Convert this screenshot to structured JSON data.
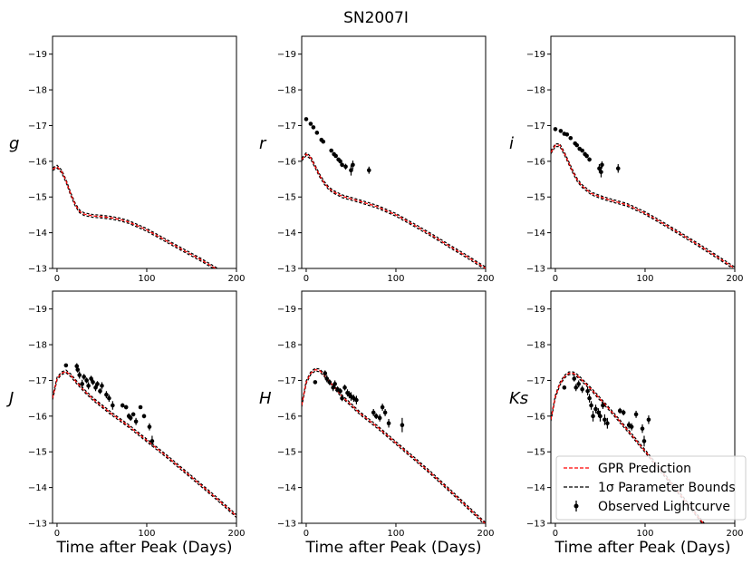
{
  "chart_data": {
    "title": "SN2007I",
    "xlabel": "Time after Peak (Days)",
    "xlim": [
      -5,
      200
    ],
    "ylim": [
      -13,
      -19.5
    ],
    "y_inverted": true,
    "x_ticks": [
      0,
      100,
      200
    ],
    "y_ticks": [
      -19,
      -18,
      -17,
      -16,
      -15,
      -14,
      -13
    ],
    "legend": {
      "placement": "lower-right of last panel",
      "entries": [
        {
          "label": "GPR Prediction",
          "style": "dashed",
          "color": "#ff0000"
        },
        {
          "label": "1σ Parameter Bounds",
          "style": "dashed",
          "color": "#000000"
        },
        {
          "label": "Observed Lightcurve",
          "style": "errorbar-marker",
          "color": "#000000"
        }
      ]
    },
    "panels": [
      {
        "band": "g",
        "type": "line",
        "model": {
          "x": [
            -5,
            0,
            5,
            10,
            15,
            20,
            25,
            30,
            40,
            50,
            60,
            70,
            80,
            100,
            120,
            140,
            160,
            180,
            200
          ],
          "y": [
            -15.78,
            -15.85,
            -15.72,
            -15.45,
            -15.1,
            -14.8,
            -14.6,
            -14.52,
            -14.47,
            -14.45,
            -14.42,
            -14.37,
            -14.3,
            -14.08,
            -13.8,
            -13.52,
            -13.25,
            -12.95,
            -12.65
          ]
        },
        "observations": []
      },
      {
        "band": "r",
        "type": "line",
        "model": {
          "x": [
            -5,
            0,
            5,
            10,
            15,
            20,
            25,
            30,
            40,
            50,
            60,
            70,
            80,
            100,
            120,
            140,
            160,
            180,
            200
          ],
          "y": [
            -16.05,
            -16.2,
            -16.1,
            -15.85,
            -15.6,
            -15.4,
            -15.25,
            -15.15,
            -15.02,
            -14.95,
            -14.88,
            -14.8,
            -14.72,
            -14.5,
            -14.22,
            -13.93,
            -13.62,
            -13.32,
            -13.0
          ]
        },
        "observations": [
          {
            "x": 0,
            "y": -17.18,
            "err": 0.04
          },
          {
            "x": 5,
            "y": -17.05,
            "err": 0.04
          },
          {
            "x": 8,
            "y": -16.95,
            "err": 0.04
          },
          {
            "x": 12,
            "y": -16.8,
            "err": 0.04
          },
          {
            "x": 17,
            "y": -16.6,
            "err": 0.04
          },
          {
            "x": 19,
            "y": -16.55,
            "err": 0.04
          },
          {
            "x": 28,
            "y": -16.3,
            "err": 0.05
          },
          {
            "x": 31,
            "y": -16.2,
            "err": 0.05
          },
          {
            "x": 33,
            "y": -16.15,
            "err": 0.05
          },
          {
            "x": 36,
            "y": -16.05,
            "err": 0.05
          },
          {
            "x": 38,
            "y": -16.0,
            "err": 0.06
          },
          {
            "x": 40,
            "y": -15.9,
            "err": 0.06
          },
          {
            "x": 44,
            "y": -15.85,
            "err": 0.08
          },
          {
            "x": 50,
            "y": -15.75,
            "err": 0.15
          },
          {
            "x": 52,
            "y": -15.9,
            "err": 0.12
          },
          {
            "x": 70,
            "y": -15.75,
            "err": 0.1
          }
        ]
      },
      {
        "band": "i",
        "type": "line",
        "model": {
          "x": [
            -5,
            0,
            5,
            10,
            15,
            20,
            25,
            30,
            40,
            50,
            60,
            70,
            80,
            100,
            120,
            140,
            160,
            180,
            200
          ],
          "y": [
            -16.25,
            -16.45,
            -16.45,
            -16.22,
            -15.95,
            -15.68,
            -15.45,
            -15.3,
            -15.1,
            -15.0,
            -14.92,
            -14.85,
            -14.78,
            -14.55,
            -14.26,
            -13.96,
            -13.65,
            -13.33,
            -13.0
          ]
        },
        "observations": [
          {
            "x": 0,
            "y": -16.9,
            "err": 0.04
          },
          {
            "x": 6,
            "y": -16.85,
            "err": 0.04
          },
          {
            "x": 10,
            "y": -16.77,
            "err": 0.04
          },
          {
            "x": 13,
            "y": -16.75,
            "err": 0.04
          },
          {
            "x": 17,
            "y": -16.65,
            "err": 0.04
          },
          {
            "x": 22,
            "y": -16.5,
            "err": 0.05
          },
          {
            "x": 24,
            "y": -16.45,
            "err": 0.05
          },
          {
            "x": 27,
            "y": -16.35,
            "err": 0.05
          },
          {
            "x": 30,
            "y": -16.3,
            "err": 0.05
          },
          {
            "x": 33,
            "y": -16.2,
            "err": 0.06
          },
          {
            "x": 35,
            "y": -16.15,
            "err": 0.06
          },
          {
            "x": 38,
            "y": -16.05,
            "err": 0.06
          },
          {
            "x": 49,
            "y": -15.8,
            "err": 0.12
          },
          {
            "x": 51,
            "y": -15.7,
            "err": 0.15
          },
          {
            "x": 52,
            "y": -15.9,
            "err": 0.1
          },
          {
            "x": 70,
            "y": -15.8,
            "err": 0.12
          }
        ]
      },
      {
        "band": "J",
        "type": "line",
        "model": {
          "x": [
            -5,
            0,
            5,
            10,
            15,
            20,
            30,
            40,
            60,
            80,
            100,
            120,
            140,
            160,
            180,
            200
          ],
          "y": [
            -16.5,
            -17.05,
            -17.2,
            -17.25,
            -17.15,
            -17.0,
            -16.72,
            -16.48,
            -16.08,
            -15.72,
            -15.32,
            -14.92,
            -14.5,
            -14.08,
            -13.65,
            -13.2
          ]
        },
        "observations": [
          {
            "x": 10,
            "y": -17.42,
            "err": 0.05
          },
          {
            "x": 22,
            "y": -17.4,
            "err": 0.08
          },
          {
            "x": 23,
            "y": -17.3,
            "err": 0.08
          },
          {
            "x": 25,
            "y": -17.15,
            "err": 0.1
          },
          {
            "x": 28,
            "y": -16.9,
            "err": 0.12
          },
          {
            "x": 30,
            "y": -17.1,
            "err": 0.08
          },
          {
            "x": 33,
            "y": -17.0,
            "err": 0.08
          },
          {
            "x": 35,
            "y": -16.85,
            "err": 0.1
          },
          {
            "x": 38,
            "y": -17.05,
            "err": 0.08
          },
          {
            "x": 40,
            "y": -16.95,
            "err": 0.08
          },
          {
            "x": 43,
            "y": -16.8,
            "err": 0.1
          },
          {
            "x": 45,
            "y": -16.9,
            "err": 0.08
          },
          {
            "x": 48,
            "y": -16.7,
            "err": 0.08
          },
          {
            "x": 50,
            "y": -16.85,
            "err": 0.1
          },
          {
            "x": 55,
            "y": -16.6,
            "err": 0.1
          },
          {
            "x": 58,
            "y": -16.5,
            "err": 0.1
          },
          {
            "x": 62,
            "y": -16.3,
            "err": 0.12
          },
          {
            "x": 73,
            "y": -16.3,
            "err": 0.06
          },
          {
            "x": 77,
            "y": -16.25,
            "err": 0.06
          },
          {
            "x": 80,
            "y": -16.0,
            "err": 0.08
          },
          {
            "x": 82,
            "y": -15.95,
            "err": 0.08
          },
          {
            "x": 85,
            "y": -16.05,
            "err": 0.06
          },
          {
            "x": 88,
            "y": -15.85,
            "err": 0.1
          },
          {
            "x": 93,
            "y": -16.25,
            "err": 0.05
          },
          {
            "x": 97,
            "y": -16.0,
            "err": 0.06
          },
          {
            "x": 103,
            "y": -15.7,
            "err": 0.1
          },
          {
            "x": 106,
            "y": -15.3,
            "err": 0.15
          }
        ]
      },
      {
        "band": "H",
        "type": "line",
        "model": {
          "x": [
            -5,
            0,
            5,
            10,
            15,
            20,
            30,
            40,
            60,
            80,
            100,
            120,
            140,
            160,
            180,
            200
          ],
          "y": [
            -16.3,
            -16.95,
            -17.2,
            -17.3,
            -17.28,
            -17.15,
            -16.85,
            -16.55,
            -16.08,
            -15.68,
            -15.25,
            -14.82,
            -14.38,
            -13.92,
            -13.45,
            -12.98
          ]
        },
        "observations": [
          {
            "x": 10,
            "y": -16.95,
            "err": 0.05
          },
          {
            "x": 21,
            "y": -17.2,
            "err": 0.08
          },
          {
            "x": 23,
            "y": -17.05,
            "err": 0.1
          },
          {
            "x": 26,
            "y": -16.95,
            "err": 0.08
          },
          {
            "x": 30,
            "y": -16.8,
            "err": 0.1
          },
          {
            "x": 32,
            "y": -16.9,
            "err": 0.1
          },
          {
            "x": 35,
            "y": -16.75,
            "err": 0.08
          },
          {
            "x": 38,
            "y": -16.7,
            "err": 0.08
          },
          {
            "x": 40,
            "y": -16.5,
            "err": 0.08
          },
          {
            "x": 43,
            "y": -16.8,
            "err": 0.08
          },
          {
            "x": 46,
            "y": -16.65,
            "err": 0.1
          },
          {
            "x": 48,
            "y": -16.6,
            "err": 0.1
          },
          {
            "x": 50,
            "y": -16.55,
            "err": 0.12
          },
          {
            "x": 53,
            "y": -16.5,
            "err": 0.1
          },
          {
            "x": 56,
            "y": -16.45,
            "err": 0.12
          },
          {
            "x": 75,
            "y": -16.1,
            "err": 0.1
          },
          {
            "x": 78,
            "y": -16.0,
            "err": 0.08
          },
          {
            "x": 82,
            "y": -15.95,
            "err": 0.1
          },
          {
            "x": 85,
            "y": -16.25,
            "err": 0.1
          },
          {
            "x": 88,
            "y": -16.1,
            "err": 0.1
          },
          {
            "x": 92,
            "y": -15.8,
            "err": 0.12
          },
          {
            "x": 107,
            "y": -15.75,
            "err": 0.2
          }
        ]
      },
      {
        "band": "Ks",
        "type": "line",
        "model": {
          "x": [
            -5,
            0,
            5,
            10,
            15,
            20,
            25,
            30,
            40,
            60,
            80,
            100,
            120,
            140,
            160,
            180,
            200
          ],
          "y": [
            -15.9,
            -16.55,
            -16.9,
            -17.1,
            -17.2,
            -17.2,
            -17.12,
            -17.0,
            -16.75,
            -16.2,
            -15.62,
            -15.02,
            -14.4,
            -13.78,
            -13.15,
            -12.52,
            -11.9
          ]
        },
        "observations": [
          {
            "x": 10,
            "y": -16.8,
            "err": 0.05
          },
          {
            "x": 21,
            "y": -17.05,
            "err": 0.08
          },
          {
            "x": 23,
            "y": -16.8,
            "err": 0.1
          },
          {
            "x": 26,
            "y": -16.9,
            "err": 0.1
          },
          {
            "x": 30,
            "y": -16.75,
            "err": 0.1
          },
          {
            "x": 36,
            "y": -16.7,
            "err": 0.12
          },
          {
            "x": 38,
            "y": -16.5,
            "err": 0.12
          },
          {
            "x": 40,
            "y": -16.3,
            "err": 0.12
          },
          {
            "x": 42,
            "y": -16.0,
            "err": 0.15
          },
          {
            "x": 45,
            "y": -16.2,
            "err": 0.12
          },
          {
            "x": 48,
            "y": -16.1,
            "err": 0.12
          },
          {
            "x": 50,
            "y": -16.0,
            "err": 0.15
          },
          {
            "x": 53,
            "y": -16.3,
            "err": 0.1
          },
          {
            "x": 55,
            "y": -15.9,
            "err": 0.15
          },
          {
            "x": 58,
            "y": -15.8,
            "err": 0.15
          },
          {
            "x": 72,
            "y": -16.15,
            "err": 0.08
          },
          {
            "x": 76,
            "y": -16.1,
            "err": 0.08
          },
          {
            "x": 82,
            "y": -15.75,
            "err": 0.1
          },
          {
            "x": 85,
            "y": -15.7,
            "err": 0.1
          },
          {
            "x": 90,
            "y": -16.05,
            "err": 0.1
          },
          {
            "x": 97,
            "y": -15.65,
            "err": 0.12
          },
          {
            "x": 99,
            "y": -15.3,
            "err": 0.15
          },
          {
            "x": 104,
            "y": -15.9,
            "err": 0.12
          }
        ]
      }
    ]
  }
}
